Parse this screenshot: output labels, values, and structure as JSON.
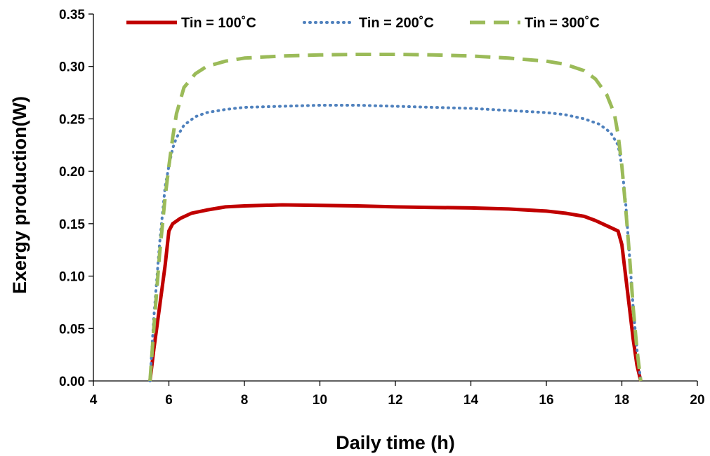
{
  "chart_data": {
    "type": "line",
    "title": "",
    "xlabel": "Daily time (h)",
    "ylabel": "Exergy production(W)",
    "xlim": [
      4,
      20
    ],
    "ylim": [
      0,
      0.35
    ],
    "x_ticks": [
      "4",
      "6",
      "8",
      "10",
      "12",
      "14",
      "16",
      "18",
      "20"
    ],
    "y_ticks": [
      "0.00",
      "0.05",
      "0.10",
      "0.15",
      "0.20",
      "0.25",
      "0.30",
      "0.35"
    ],
    "grid": false,
    "legend_position": "top",
    "series": [
      {
        "name": "Tin = 100˚C",
        "color": "#C00000",
        "style": "solid",
        "x": [
          5.5,
          5.6,
          5.75,
          5.9,
          6.0,
          6.1,
          6.3,
          6.6,
          7,
          7.5,
          8,
          9,
          10,
          11,
          12,
          13,
          14,
          15,
          16,
          16.5,
          17,
          17.3,
          17.6,
          17.9,
          18.0,
          18.1,
          18.2,
          18.3,
          18.4,
          18.5
        ],
        "y": [
          0.0,
          0.03,
          0.07,
          0.11,
          0.143,
          0.15,
          0.155,
          0.16,
          0.163,
          0.166,
          0.167,
          0.168,
          0.1675,
          0.167,
          0.166,
          0.1655,
          0.165,
          0.164,
          0.162,
          0.16,
          0.157,
          0.153,
          0.148,
          0.143,
          0.13,
          0.1,
          0.07,
          0.04,
          0.015,
          0.0
        ]
      },
      {
        "name": "Tin = 200˚C",
        "color": "#4F81BD",
        "style": "dotted",
        "x": [
          5.5,
          5.6,
          5.75,
          5.9,
          6.0,
          6.1,
          6.2,
          6.4,
          6.7,
          7,
          7.5,
          8,
          9,
          10,
          11,
          12,
          13,
          14,
          15,
          16,
          16.5,
          17,
          17.4,
          17.7,
          17.9,
          18.0,
          18.1,
          18.2,
          18.3,
          18.4,
          18.5
        ],
        "y": [
          0.0,
          0.06,
          0.13,
          0.185,
          0.205,
          0.222,
          0.232,
          0.244,
          0.252,
          0.256,
          0.259,
          0.261,
          0.262,
          0.263,
          0.263,
          0.262,
          0.261,
          0.26,
          0.258,
          0.256,
          0.254,
          0.25,
          0.245,
          0.237,
          0.225,
          0.205,
          0.17,
          0.12,
          0.07,
          0.03,
          0.0
        ]
      },
      {
        "name": "Tin = 300˚C",
        "color": "#9BBB59",
        "style": "dashed",
        "x": [
          5.5,
          5.6,
          5.75,
          5.9,
          6.0,
          6.1,
          6.2,
          6.4,
          6.7,
          7,
          7.5,
          8,
          9,
          10,
          11,
          12,
          13,
          14,
          15,
          16,
          16.5,
          17,
          17.3,
          17.6,
          17.8,
          17.9,
          18.0,
          18.1,
          18.2,
          18.3,
          18.4,
          18.5
        ],
        "y": [
          0.0,
          0.05,
          0.12,
          0.175,
          0.205,
          0.232,
          0.255,
          0.28,
          0.293,
          0.3,
          0.305,
          0.308,
          0.31,
          0.311,
          0.3115,
          0.3115,
          0.311,
          0.31,
          0.308,
          0.305,
          0.302,
          0.296,
          0.288,
          0.273,
          0.255,
          0.235,
          0.205,
          0.165,
          0.12,
          0.07,
          0.03,
          0.0
        ]
      }
    ]
  }
}
